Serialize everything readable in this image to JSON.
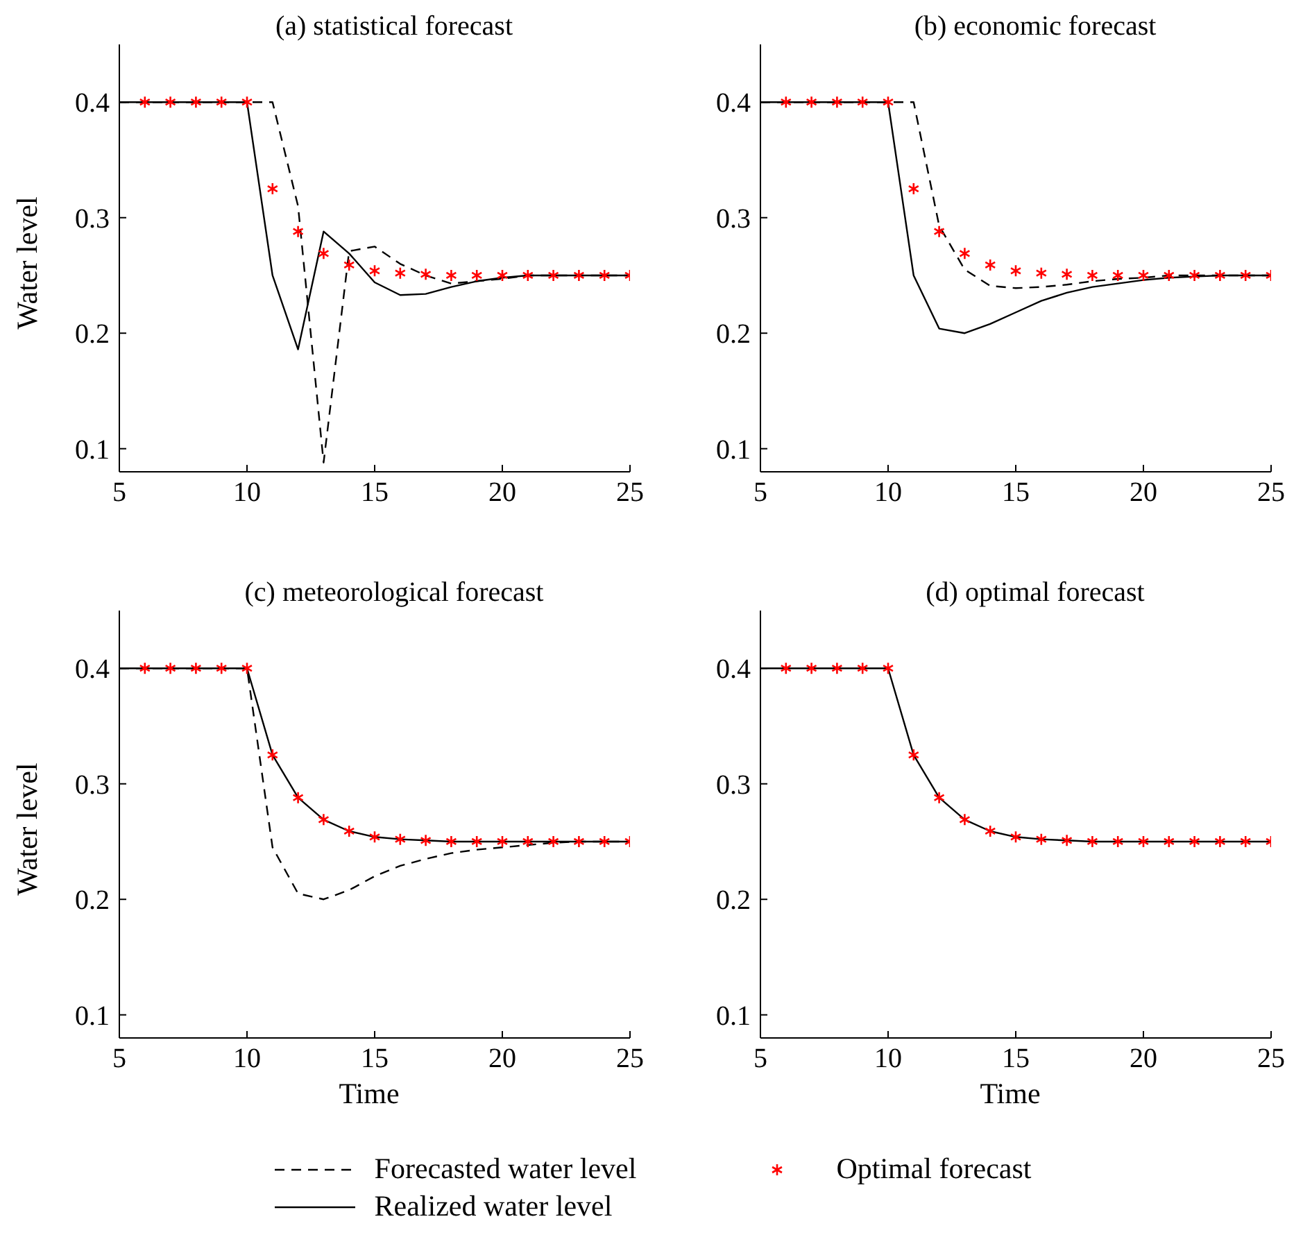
{
  "chart_data": [
    {
      "type": "line",
      "title": "(a) statistical forecast",
      "ylabel": "Water level",
      "xlim": [
        5,
        25
      ],
      "xticks": [
        5,
        10,
        15,
        20,
        25
      ],
      "ylim": [
        0.08,
        0.45
      ],
      "yticks": [
        0.1,
        0.2,
        0.3,
        0.4
      ],
      "grid": false,
      "legend": "bottom",
      "marker": "none",
      "series": [
        {
          "name": "Forecasted water level",
          "line_style": "dashed",
          "color": "#000000",
          "x": [
            5,
            6,
            7,
            8,
            9,
            10,
            11,
            12,
            13,
            14,
            15,
            16,
            17,
            18,
            19,
            20,
            21,
            22,
            23,
            24,
            25
          ],
          "values": [
            0.4,
            0.4,
            0.4,
            0.4,
            0.4,
            0.4,
            0.4,
            0.31,
            0.088,
            0.271,
            0.275,
            0.26,
            0.25,
            0.243,
            0.245,
            0.247,
            0.25,
            0.25,
            0.25,
            0.25,
            0.25
          ]
        },
        {
          "name": "Realized water level",
          "line_style": "solid",
          "color": "#000000",
          "x": [
            5,
            6,
            7,
            8,
            9,
            10,
            11,
            12,
            13,
            14,
            15,
            16,
            17,
            18,
            19,
            20,
            21,
            22,
            23,
            24,
            25
          ],
          "values": [
            0.4,
            0.4,
            0.4,
            0.4,
            0.4,
            0.4,
            0.25,
            0.186,
            0.288,
            0.269,
            0.244,
            0.233,
            0.234,
            0.24,
            0.245,
            0.248,
            0.25,
            0.25,
            0.25,
            0.25,
            0.25
          ]
        },
        {
          "name": "Optimal forecast",
          "type": "scatter",
          "marker": "cross",
          "color": "#ff0000",
          "x": [
            6,
            7,
            8,
            9,
            10,
            11,
            12,
            13,
            14,
            15,
            16,
            17,
            18,
            19,
            20,
            21,
            22,
            23,
            24,
            25
          ],
          "values": [
            0.4,
            0.4,
            0.4,
            0.4,
            0.4,
            0.325,
            0.288,
            0.269,
            0.259,
            0.254,
            0.252,
            0.251,
            0.25,
            0.25,
            0.25,
            0.25,
            0.25,
            0.25,
            0.25,
            0.25
          ]
        }
      ]
    },
    {
      "type": "line",
      "title": "(b) economic forecast",
      "xlim": [
        5,
        25
      ],
      "xticks": [
        5,
        10,
        15,
        20,
        25
      ],
      "ylim": [
        0.08,
        0.45
      ],
      "yticks": [
        0.1,
        0.2,
        0.3,
        0.4
      ],
      "grid": false,
      "marker": "none",
      "series": [
        {
          "line_style": "dashed",
          "color": "#000000",
          "x": [
            5,
            6,
            7,
            8,
            9,
            10,
            11,
            12,
            13,
            14,
            15,
            16,
            17,
            18,
            19,
            20,
            21,
            22,
            23,
            24,
            25
          ],
          "values": [
            0.4,
            0.4,
            0.4,
            0.4,
            0.4,
            0.4,
            0.4,
            0.293,
            0.255,
            0.241,
            0.239,
            0.24,
            0.242,
            0.245,
            0.247,
            0.248,
            0.25,
            0.25,
            0.25,
            0.25,
            0.25
          ]
        },
        {
          "line_style": "solid",
          "color": "#000000",
          "x": [
            5,
            6,
            7,
            8,
            9,
            10,
            11,
            12,
            13,
            14,
            15,
            16,
            17,
            18,
            19,
            20,
            21,
            22,
            23,
            24,
            25
          ],
          "values": [
            0.4,
            0.4,
            0.4,
            0.4,
            0.4,
            0.4,
            0.25,
            0.204,
            0.2,
            0.208,
            0.218,
            0.228,
            0.235,
            0.24,
            0.243,
            0.246,
            0.248,
            0.249,
            0.25,
            0.25,
            0.25
          ]
        },
        {
          "type": "scatter",
          "marker": "cross",
          "color": "#ff0000",
          "x": [
            6,
            7,
            8,
            9,
            10,
            11,
            12,
            13,
            14,
            15,
            16,
            17,
            18,
            19,
            20,
            21,
            22,
            23,
            24,
            25
          ],
          "values": [
            0.4,
            0.4,
            0.4,
            0.4,
            0.4,
            0.325,
            0.288,
            0.269,
            0.259,
            0.254,
            0.252,
            0.251,
            0.25,
            0.25,
            0.25,
            0.25,
            0.25,
            0.25,
            0.25,
            0.25
          ]
        }
      ]
    },
    {
      "type": "line",
      "title": "(c) meteorological forecast",
      "xlabel": "Time",
      "ylabel": "Water level",
      "xlim": [
        5,
        25
      ],
      "xticks": [
        5,
        10,
        15,
        20,
        25
      ],
      "ylim": [
        0.08,
        0.45
      ],
      "yticks": [
        0.1,
        0.2,
        0.3,
        0.4
      ],
      "grid": false,
      "marker": "none",
      "series": [
        {
          "line_style": "dashed",
          "color": "#000000",
          "x": [
            5,
            6,
            7,
            8,
            9,
            10,
            11,
            12,
            13,
            14,
            15,
            16,
            17,
            18,
            19,
            20,
            21,
            22,
            23,
            24,
            25
          ],
          "values": [
            0.4,
            0.4,
            0.4,
            0.4,
            0.4,
            0.4,
            0.245,
            0.205,
            0.2,
            0.208,
            0.22,
            0.229,
            0.235,
            0.24,
            0.243,
            0.245,
            0.247,
            0.249,
            0.25,
            0.25,
            0.25
          ]
        },
        {
          "line_style": "solid",
          "color": "#000000",
          "x": [
            5,
            6,
            7,
            8,
            9,
            10,
            11,
            12,
            13,
            14,
            15,
            16,
            17,
            18,
            19,
            20,
            21,
            22,
            23,
            24,
            25
          ],
          "values": [
            0.4,
            0.4,
            0.4,
            0.4,
            0.4,
            0.4,
            0.325,
            0.288,
            0.269,
            0.259,
            0.254,
            0.252,
            0.251,
            0.25,
            0.25,
            0.25,
            0.25,
            0.25,
            0.25,
            0.25,
            0.25
          ]
        },
        {
          "type": "scatter",
          "marker": "cross",
          "color": "#ff0000",
          "x": [
            6,
            7,
            8,
            9,
            10,
            11,
            12,
            13,
            14,
            15,
            16,
            17,
            18,
            19,
            20,
            21,
            22,
            23,
            24,
            25
          ],
          "values": [
            0.4,
            0.4,
            0.4,
            0.4,
            0.4,
            0.325,
            0.288,
            0.269,
            0.259,
            0.254,
            0.252,
            0.251,
            0.25,
            0.25,
            0.25,
            0.25,
            0.25,
            0.25,
            0.25,
            0.25
          ]
        }
      ]
    },
    {
      "type": "line",
      "title": "(d) optimal forecast",
      "xlabel": "Time",
      "xlim": [
        5,
        25
      ],
      "xticks": [
        5,
        10,
        15,
        20,
        25
      ],
      "ylim": [
        0.08,
        0.45
      ],
      "yticks": [
        0.1,
        0.2,
        0.3,
        0.4
      ],
      "grid": false,
      "marker": "none",
      "series": [
        {
          "line_style": "solid",
          "color": "#000000",
          "x": [
            5,
            6,
            7,
            8,
            9,
            10,
            11,
            12,
            13,
            14,
            15,
            16,
            17,
            18,
            19,
            20,
            21,
            22,
            23,
            24,
            25
          ],
          "values": [
            0.4,
            0.4,
            0.4,
            0.4,
            0.4,
            0.4,
            0.325,
            0.288,
            0.269,
            0.259,
            0.254,
            0.252,
            0.251,
            0.25,
            0.25,
            0.25,
            0.25,
            0.25,
            0.25,
            0.25,
            0.25
          ]
        },
        {
          "type": "scatter",
          "marker": "cross",
          "color": "#ff0000",
          "x": [
            6,
            7,
            8,
            9,
            10,
            11,
            12,
            13,
            14,
            15,
            16,
            17,
            18,
            19,
            20,
            21,
            22,
            23,
            24,
            25
          ],
          "values": [
            0.4,
            0.4,
            0.4,
            0.4,
            0.4,
            0.325,
            0.288,
            0.269,
            0.259,
            0.254,
            0.252,
            0.251,
            0.25,
            0.25,
            0.25,
            0.25,
            0.25,
            0.25,
            0.25,
            0.25
          ]
        }
      ]
    }
  ]
}
